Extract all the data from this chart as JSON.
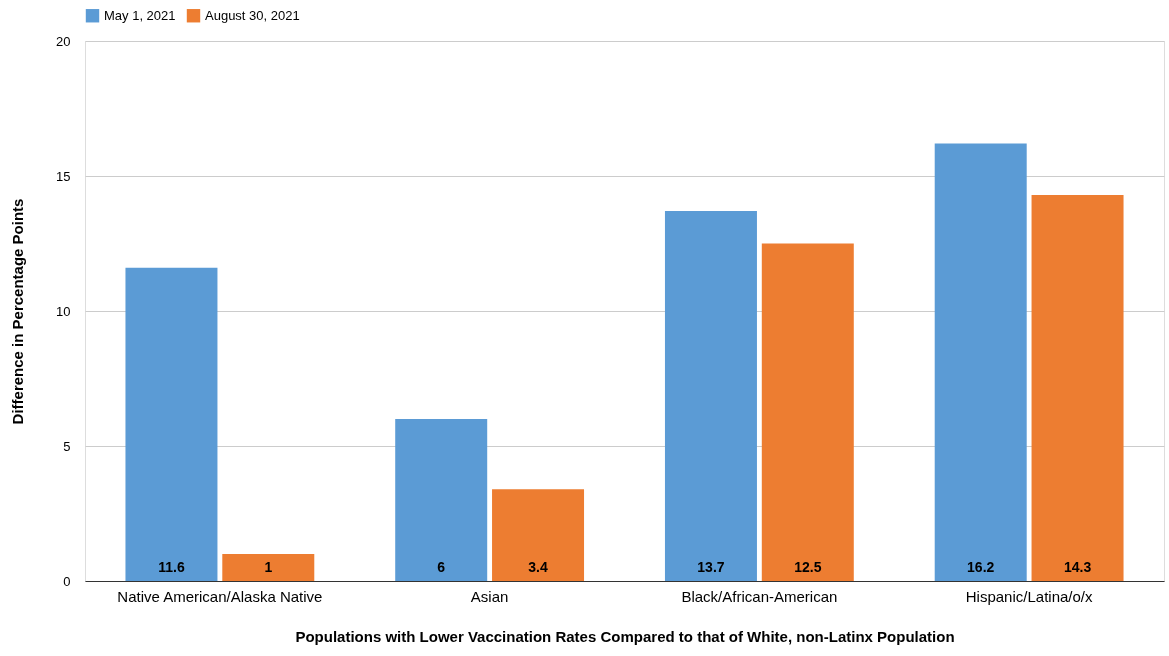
{
  "chart_data": {
    "type": "bar",
    "xlabel": "Populations with Lower Vaccination Rates Compared to that of White, non-Latinx Population",
    "ylabel": "Difference in Percentage Points",
    "categories": [
      "Native American/Alaska Native",
      "Asian",
      "Black/African-American",
      "Hispanic/Latina/o/x"
    ],
    "series": [
      {
        "name": "May 1, 2021",
        "color": "#5b9bd5",
        "values": [
          11.6,
          6,
          13.7,
          16.2
        ]
      },
      {
        "name": "August 30, 2021",
        "color": "#ed7d31",
        "values": [
          1,
          3.4,
          12.5,
          14.3
        ]
      }
    ],
    "ylim": [
      0,
      20
    ],
    "yticks": [
      0,
      5,
      10,
      15,
      20
    ],
    "grid": "y",
    "legend": "top",
    "data_labels": true
  }
}
